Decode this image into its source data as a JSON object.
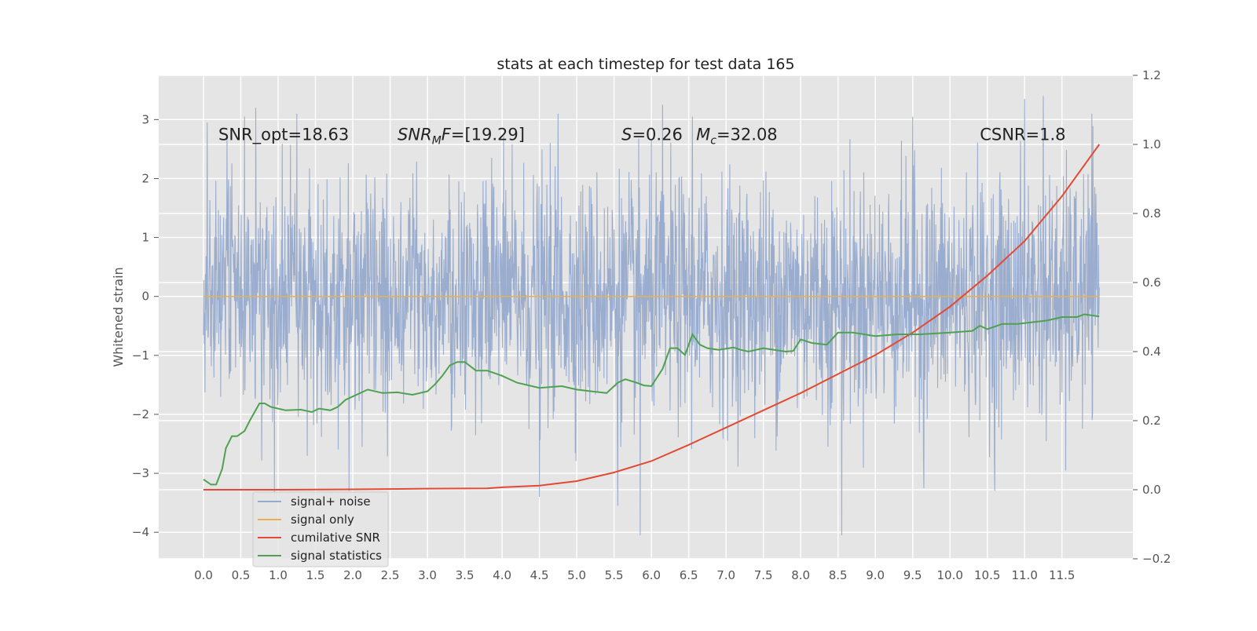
{
  "chart_data": {
    "type": "line",
    "title": "stats at each timestep for test data 165",
    "xlabel": "",
    "ylabel": "Whitened strain",
    "y2label": "",
    "xlim": [
      -0.6,
      12.45
    ],
    "ylim": [
      -4.45,
      3.75
    ],
    "y2lim": [
      -0.2,
      1.2
    ],
    "xticks": [
      0.0,
      0.5,
      1.0,
      1.5,
      2.0,
      2.5,
      3.0,
      3.5,
      4.0,
      4.5,
      5.0,
      5.5,
      6.0,
      6.5,
      7.0,
      7.5,
      8.0,
      8.5,
      9.0,
      9.5,
      10.0,
      10.5,
      11.0,
      11.5
    ],
    "xtick_labels": [
      "0.0",
      "0.5",
      "1.0",
      "1.5",
      "2.0",
      "2.5",
      "3.0",
      "3.5",
      "4.0",
      "4.5",
      "5.0",
      "5.5",
      "6.0",
      "6.5",
      "7.0",
      "7.5",
      "8.0",
      "8.5",
      "9.0",
      "9.5",
      "10.0",
      "10.5",
      "11.0",
      "11.5"
    ],
    "yticks": [
      -4,
      -3,
      -2,
      -1,
      0,
      1,
      2,
      3
    ],
    "ytick_labels": [
      "−4",
      "−3",
      "−2",
      "−1",
      "0",
      "1",
      "2",
      "3"
    ],
    "y2ticks": [
      -0.2,
      0.0,
      0.2,
      0.4,
      0.6,
      0.8,
      1.0,
      1.2
    ],
    "y2tick_labels": [
      "−0.2",
      "0.0",
      "0.2",
      "0.4",
      "0.6",
      "0.8",
      "1.0",
      "1.2"
    ],
    "grid": true,
    "legend_position": "lower-left",
    "annotations": [
      {
        "key": "snr_opt",
        "x": 0.2,
        "y": 2.65,
        "text": "SNR_opt=18.63"
      },
      {
        "key": "snr_mf",
        "x": 2.6,
        "y": 2.65,
        "text": "SNR_MF=[19.29]",
        "main": "SNR",
        "sub": "M",
        "tail": "F=[19.29]"
      },
      {
        "key": "s_stat",
        "x": 5.6,
        "y": 2.65,
        "text": "S=0.26",
        "main": "S",
        "tail": "=0.26"
      },
      {
        "key": "mc",
        "x": 6.6,
        "y": 2.65,
        "text": "M_c=32.08",
        "main": "M",
        "sub": "c",
        "tail": "=32.08"
      },
      {
        "key": "csnr",
        "x": 10.4,
        "y": 2.65,
        "text": "CSNR=1.8"
      }
    ],
    "series": [
      {
        "key": "signal_noise",
        "name": "signal+ noise",
        "color": "#97aacc",
        "axis": "left",
        "x_range": [
          0.0,
          12.0
        ],
        "extremes": [
          {
            "x": 0.05,
            "y": 2.95
          },
          {
            "x": 0.55,
            "y": 3.05
          },
          {
            "x": 0.7,
            "y": 3.2
          },
          {
            "x": 1.25,
            "y": 3.1
          },
          {
            "x": 4.75,
            "y": 3.1
          },
          {
            "x": 6.15,
            "y": 3.25
          },
          {
            "x": 6.55,
            "y": 3.05
          },
          {
            "x": 9.5,
            "y": 3.05
          },
          {
            "x": 11.0,
            "y": 3.35
          },
          {
            "x": 11.25,
            "y": 3.4
          },
          {
            "x": 11.9,
            "y": 3.1
          },
          {
            "x": 0.95,
            "y": -3.35
          },
          {
            "x": 1.95,
            "y": -3.3
          },
          {
            "x": 4.5,
            "y": -3.4
          },
          {
            "x": 5.55,
            "y": -3.55
          },
          {
            "x": 5.85,
            "y": -4.05
          },
          {
            "x": 8.55,
            "y": -4.05
          },
          {
            "x": 9.65,
            "y": -3.25
          },
          {
            "x": 10.6,
            "y": -3.3
          },
          {
            "x": 11.55,
            "y": -2.95
          }
        ]
      },
      {
        "key": "signal_only",
        "name": "signal only",
        "color": "#e8b04f",
        "axis": "left",
        "x": [
          0.0,
          12.0
        ],
        "values": [
          0.0,
          0.0
        ]
      },
      {
        "key": "cumulative_snr",
        "name": "cumilative SNR",
        "color": "#e24a33",
        "axis": "right",
        "x": [
          0.0,
          1.0,
          2.0,
          3.0,
          3.8,
          4.0,
          4.5,
          5.0,
          5.5,
          6.0,
          6.5,
          7.0,
          7.5,
          8.0,
          8.5,
          9.0,
          9.5,
          10.0,
          10.5,
          11.0,
          11.5,
          12.0
        ],
        "values": [
          0.0,
          0.0,
          0.001,
          0.003,
          0.004,
          0.007,
          0.012,
          0.025,
          0.05,
          0.083,
          0.13,
          0.18,
          0.23,
          0.28,
          0.335,
          0.39,
          0.455,
          0.53,
          0.62,
          0.72,
          0.85,
          1.0
        ]
      },
      {
        "key": "signal_statistics",
        "name": "signal statistics",
        "color": "#4fa152",
        "axis": "right",
        "x": [
          0.0,
          0.1,
          0.17,
          0.25,
          0.3,
          0.38,
          0.45,
          0.55,
          0.62,
          0.75,
          0.82,
          0.9,
          1.0,
          1.1,
          1.3,
          1.45,
          1.55,
          1.7,
          1.8,
          1.9,
          2.0,
          2.2,
          2.4,
          2.6,
          2.8,
          3.0,
          3.1,
          3.2,
          3.3,
          3.4,
          3.5,
          3.65,
          3.8,
          4.0,
          4.2,
          4.5,
          4.8,
          5.0,
          5.2,
          5.4,
          5.55,
          5.65,
          5.8,
          5.9,
          6.0,
          6.15,
          6.25,
          6.35,
          6.45,
          6.55,
          6.65,
          6.75,
          6.9,
          7.1,
          7.2,
          7.3,
          7.5,
          7.8,
          7.9,
          8.0,
          8.15,
          8.35,
          8.5,
          8.7,
          9.0,
          9.3,
          9.6,
          10.0,
          10.3,
          10.4,
          10.5,
          10.7,
          10.9,
          11.1,
          11.3,
          11.5,
          11.7,
          11.8,
          12.0
        ],
        "values": [
          0.03,
          0.015,
          0.015,
          0.06,
          0.12,
          0.155,
          0.155,
          0.17,
          0.2,
          0.25,
          0.25,
          0.24,
          0.235,
          0.23,
          0.232,
          0.225,
          0.235,
          0.23,
          0.24,
          0.26,
          0.27,
          0.29,
          0.28,
          0.282,
          0.275,
          0.285,
          0.305,
          0.33,
          0.36,
          0.37,
          0.37,
          0.345,
          0.345,
          0.33,
          0.31,
          0.295,
          0.3,
          0.29,
          0.285,
          0.28,
          0.31,
          0.32,
          0.31,
          0.302,
          0.3,
          0.35,
          0.41,
          0.41,
          0.39,
          0.45,
          0.42,
          0.41,
          0.405,
          0.412,
          0.405,
          0.4,
          0.41,
          0.4,
          0.402,
          0.435,
          0.425,
          0.42,
          0.455,
          0.455,
          0.445,
          0.45,
          0.45,
          0.455,
          0.46,
          0.475,
          0.465,
          0.48,
          0.48,
          0.485,
          0.49,
          0.5,
          0.5,
          0.508,
          0.502
        ]
      }
    ]
  }
}
